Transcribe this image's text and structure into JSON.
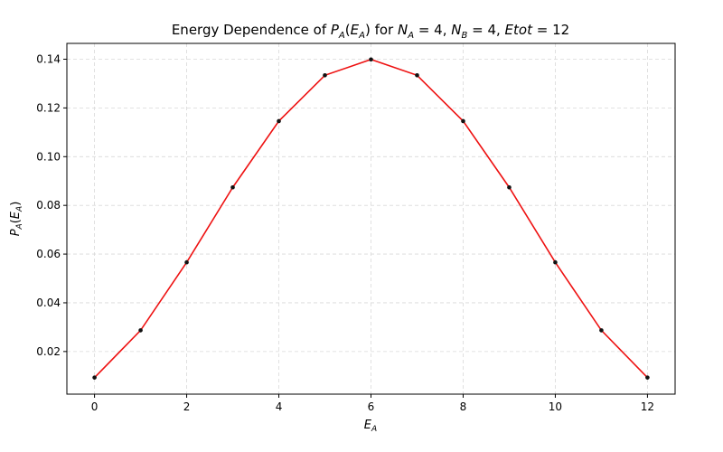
{
  "chart_data": {
    "type": "line",
    "title": "Energy Dependence of P_A(E_A) for N_A = 4, N_B = 4, Etot = 12",
    "title_parts": {
      "prefix": "Energy Dependence of ",
      "p_main": "P",
      "p_sub": "A",
      "e_main": "E",
      "e_sub": "A",
      "for_text": " for ",
      "na_main": "N",
      "na_sub": "A",
      "na_val": " = 4, ",
      "nb_main": "N",
      "nb_sub": "B",
      "nb_val": " = 4, ",
      "etot": "Etot",
      "etot_val": " = 12"
    },
    "xlabel": "E_A",
    "xlabel_parts": {
      "main": "E",
      "sub": "A"
    },
    "ylabel": "P_A(E_A)",
    "ylabel_parts": {
      "p_main": "P",
      "p_sub": "A",
      "e_main": "E",
      "e_sub": "A"
    },
    "xlim": [
      -0.6,
      12.6
    ],
    "ylim": [
      0.0025,
      0.1465
    ],
    "xticks": [
      0,
      2,
      4,
      6,
      8,
      10,
      12
    ],
    "yticks": [
      0.02,
      0.04,
      0.06,
      0.08,
      0.1,
      0.12,
      0.14
    ],
    "ytick_labels": [
      "0.02",
      "0.04",
      "0.06",
      "0.08",
      "0.10",
      "0.12",
      "0.14"
    ],
    "grid": true,
    "series": [
      {
        "line_color": "#ee1111",
        "marker_color": "#111111",
        "x": [
          0,
          1,
          2,
          3,
          4,
          5,
          6,
          7,
          8,
          9,
          10,
          11,
          12
        ],
        "y": [
          0.0093,
          0.0287,
          0.0566,
          0.0874,
          0.1146,
          0.1334,
          0.1399,
          0.1334,
          0.1146,
          0.0874,
          0.0566,
          0.0287,
          0.0093
        ]
      }
    ]
  }
}
